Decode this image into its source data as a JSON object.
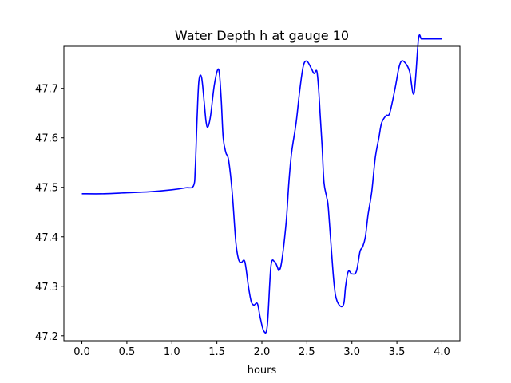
{
  "chart_data": {
    "type": "line",
    "title": "Water Depth h at gauge 10",
    "xlabel": "hours",
    "ylabel": "",
    "xlim": [
      -0.2,
      4.2
    ],
    "ylim": [
      47.19,
      47.785
    ],
    "xticks": [
      0.0,
      0.5,
      1.0,
      1.5,
      2.0,
      2.5,
      3.0,
      3.5,
      4.0
    ],
    "xtick_labels": [
      "0.0",
      "0.5",
      "1.0",
      "1.5",
      "2.0",
      "2.5",
      "3.0",
      "3.5",
      "4.0"
    ],
    "yticks": [
      47.2,
      47.3,
      47.4,
      47.5,
      47.6,
      47.7
    ],
    "ytick_labels": [
      "47.2",
      "47.3",
      "47.4",
      "47.5",
      "47.6",
      "47.7"
    ],
    "grid": false,
    "series": [
      {
        "color": "#0000ff",
        "x": [
          0.0,
          0.25,
          0.5,
          0.75,
          1.0,
          1.15,
          1.24,
          1.26,
          1.28,
          1.3,
          1.33,
          1.36,
          1.38,
          1.4,
          1.43,
          1.47,
          1.51,
          1.53,
          1.55,
          1.57,
          1.6,
          1.63,
          1.67,
          1.71,
          1.74,
          1.77,
          1.81,
          1.85,
          1.88,
          1.91,
          1.95,
          1.98,
          2.02,
          2.06,
          2.1,
          2.14,
          2.17,
          2.19,
          2.22,
          2.27,
          2.3,
          2.33,
          2.38,
          2.42,
          2.46,
          2.5,
          2.55,
          2.58,
          2.61,
          2.63,
          2.65,
          2.67,
          2.69,
          2.72,
          2.74,
          2.79,
          2.82,
          2.87,
          2.91,
          2.93,
          2.96,
          3.0,
          3.05,
          3.09,
          3.12,
          3.15,
          3.18,
          3.22,
          3.26,
          3.3,
          3.33,
          3.38,
          3.42,
          3.48,
          3.52,
          3.55,
          3.59,
          3.64,
          3.69,
          3.74,
          3.77,
          3.79,
          3.82,
          3.86,
          3.9,
          3.93,
          3.96,
          3.98,
          4.0
        ],
        "y": [
          47.487,
          47.487,
          47.489,
          47.491,
          47.495,
          47.499,
          47.503,
          47.54,
          47.64,
          47.715,
          47.722,
          47.67,
          47.632,
          47.622,
          47.645,
          47.705,
          47.738,
          47.726,
          47.672,
          47.6,
          47.57,
          47.555,
          47.49,
          47.39,
          47.355,
          47.348,
          47.35,
          47.3,
          47.27,
          47.262,
          47.265,
          47.238,
          47.21,
          47.22,
          47.34,
          47.35,
          47.34,
          47.332,
          47.35,
          47.43,
          47.51,
          47.57,
          47.63,
          47.695,
          47.745,
          47.755,
          47.74,
          47.73,
          47.735,
          47.7,
          47.64,
          47.58,
          47.51,
          47.48,
          47.455,
          47.33,
          47.28,
          47.26,
          47.265,
          47.3,
          47.33,
          47.325,
          47.33,
          47.37,
          47.38,
          47.4,
          47.445,
          47.49,
          47.56,
          47.6,
          47.63,
          47.645,
          47.65,
          47.7,
          47.74,
          47.755,
          47.752,
          47.735,
          47.69,
          47.8,
          47.8,
          47.8,
          47.8,
          47.8,
          47.8,
          47.8,
          47.8,
          47.8,
          47.8
        ]
      }
    ]
  }
}
